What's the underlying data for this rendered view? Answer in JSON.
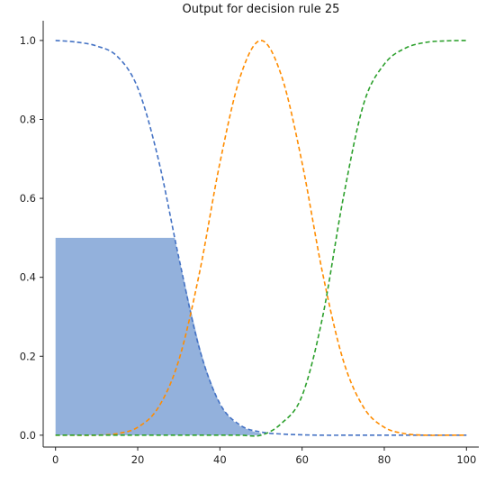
{
  "chart_data": {
    "type": "line",
    "title": "Output for decision rule 25",
    "xlabel": "",
    "ylabel": "",
    "xlim": [
      -3,
      103
    ],
    "ylim": [
      -0.03,
      1.05
    ],
    "x_ticks": [
      0,
      20,
      40,
      60,
      80,
      100
    ],
    "y_ticks": [
      0.0,
      0.2,
      0.4,
      0.6,
      0.8,
      1.0
    ],
    "x_tick_labels": [
      "0",
      "20",
      "40",
      "60",
      "80",
      "100"
    ],
    "y_tick_labels": [
      "0.0",
      "0.2",
      "0.4",
      "0.6",
      "0.8",
      "1.0"
    ],
    "grid": false,
    "x": [
      0,
      5,
      10,
      15,
      20,
      25,
      30,
      35,
      40,
      45,
      50,
      55,
      60,
      65,
      70,
      75,
      80,
      85,
      90,
      95,
      100
    ],
    "series": [
      {
        "color": "#4472c4",
        "style": "dashed",
        "values": [
          1.0,
          0.996,
          0.986,
          0.96,
          0.88,
          0.7,
          0.45,
          0.22,
          0.08,
          0.025,
          0.008,
          0.003,
          0.001,
          0.0,
          0.0,
          0.0,
          0.0,
          0.0,
          0.0,
          0.0,
          0.0
        ]
      },
      {
        "color": "#ff8c00",
        "style": "dashed",
        "values": [
          0.0,
          0.0,
          0.0,
          0.004,
          0.02,
          0.07,
          0.19,
          0.41,
          0.69,
          0.91,
          1.0,
          0.91,
          0.69,
          0.41,
          0.19,
          0.07,
          0.02,
          0.004,
          0.0,
          0.0,
          0.0
        ]
      },
      {
        "color": "#2ca02c",
        "style": "dashed",
        "values": [
          0.0,
          0.0,
          0.0,
          0.0,
          0.0,
          0.0,
          0.0,
          0.0,
          0.0,
          0.0,
          0.0,
          0.03,
          0.1,
          0.3,
          0.6,
          0.84,
          0.94,
          0.98,
          0.995,
          0.999,
          1.0
        ]
      }
    ],
    "fill": {
      "color": "#6f97d0",
      "opacity": 0.75,
      "x": [
        0,
        29,
        30,
        32,
        34,
        36,
        38,
        40,
        42,
        44,
        46,
        48,
        50
      ],
      "values": [
        0.5,
        0.5,
        0.45,
        0.36,
        0.27,
        0.19,
        0.13,
        0.08,
        0.05,
        0.03,
        0.018,
        0.01,
        0.005
      ]
    }
  }
}
